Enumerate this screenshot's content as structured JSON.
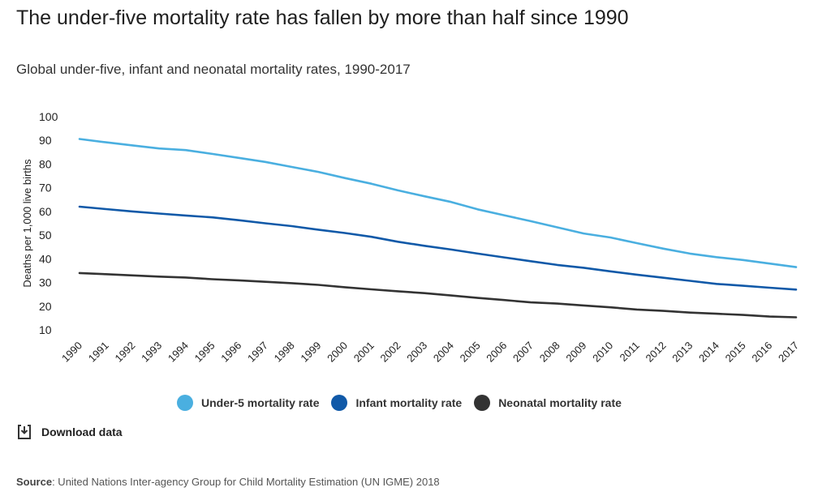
{
  "header": {
    "title": "The under-five mortality rate has fallen by more than half since 1990",
    "subtitle": "Global under-five, infant and neonatal mortality rates, 1990-2017"
  },
  "chart_data": {
    "type": "line",
    "ylabel": "Deaths per 1,000 live births",
    "ylim": [
      10,
      100
    ],
    "yticks": [
      100,
      90,
      80,
      70,
      60,
      50,
      40,
      30,
      20,
      10
    ],
    "grid": false,
    "legend_position": "bottom",
    "x": [
      "1990",
      "1991",
      "1992",
      "1993",
      "1994",
      "1995",
      "1996",
      "1997",
      "1998",
      "1999",
      "2000",
      "2001",
      "2002",
      "2003",
      "2004",
      "2005",
      "2006",
      "2007",
      "2008",
      "2009",
      "2010",
      "2011",
      "2012",
      "2013",
      "2014",
      "2015",
      "2016",
      "2017"
    ],
    "series": [
      {
        "name": "Under-5 mortality rate",
        "color": "#4aafe0",
        "values": [
          90.6,
          89.2,
          87.9,
          86.6,
          85.9,
          84.3,
          82.6,
          80.9,
          78.8,
          76.7,
          74.1,
          71.7,
          68.9,
          66.4,
          64.0,
          60.9,
          58.4,
          55.9,
          53.3,
          50.7,
          49.0,
          46.6,
          44.3,
          42.2,
          40.7,
          39.5,
          38.0,
          36.5
        ]
      },
      {
        "name": "Infant mortality rate",
        "color": "#1059a8",
        "values": [
          62.0,
          61.0,
          60.0,
          59.1,
          58.3,
          57.5,
          56.3,
          55.0,
          53.8,
          52.3,
          50.9,
          49.3,
          47.2,
          45.5,
          43.9,
          42.2,
          40.6,
          39.0,
          37.4,
          36.2,
          34.7,
          33.3,
          32.0,
          30.7,
          29.4,
          28.6,
          27.8,
          27.0
        ]
      },
      {
        "name": "Neonatal mortality rate",
        "color": "#333333",
        "values": [
          34.0,
          33.5,
          33.0,
          32.5,
          32.1,
          31.4,
          30.9,
          30.3,
          29.7,
          29.0,
          28.0,
          27.1,
          26.3,
          25.5,
          24.5,
          23.5,
          22.6,
          21.6,
          21.1,
          20.3,
          19.5,
          18.6,
          18.0,
          17.3,
          16.8,
          16.3,
          15.6,
          15.3
        ]
      }
    ]
  },
  "download": {
    "label": "Download data",
    "icon": "download-icon"
  },
  "source": {
    "label": "Source",
    "text": ": United Nations Inter-agency Group for Child Mortality Estimation (UN IGME) 2018"
  }
}
